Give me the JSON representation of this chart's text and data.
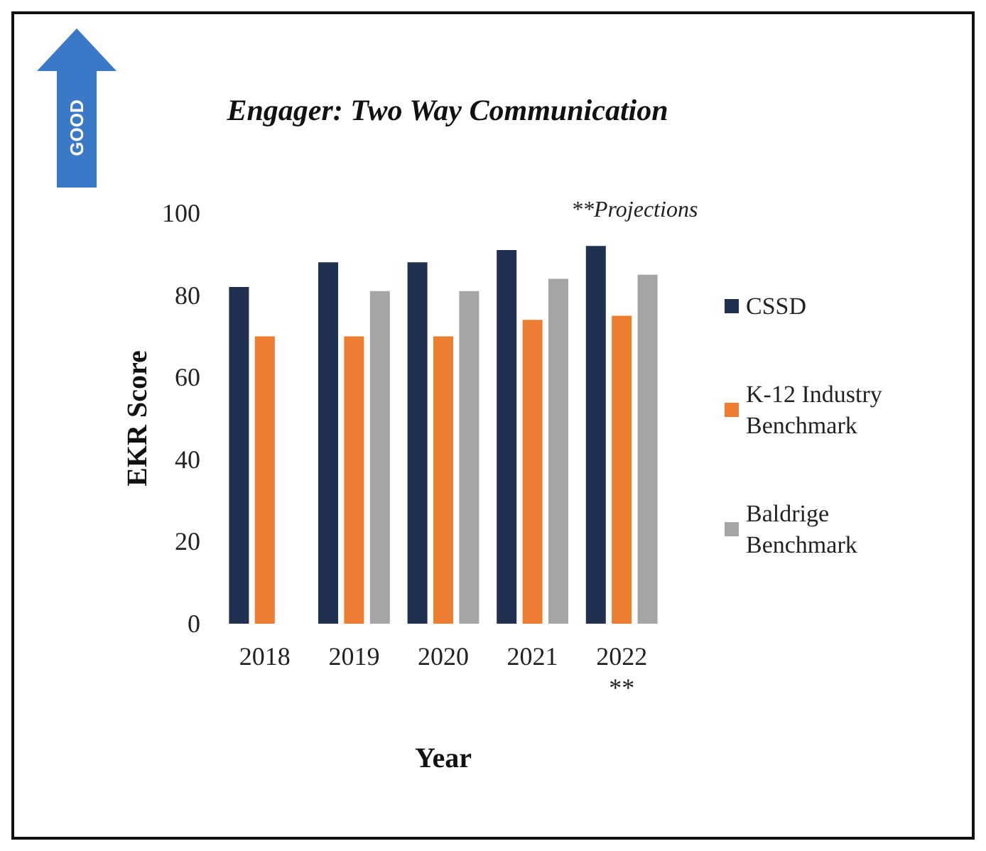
{
  "chart_data": {
    "type": "bar",
    "title": "Engager: Two Way Communication",
    "xlabel": "Year",
    "ylabel": "EKR Score",
    "categories": [
      "2018",
      "2019",
      "2020",
      "2021",
      "2022\n**"
    ],
    "series": [
      {
        "name": "CSSD",
        "color": "#1f3050",
        "values": [
          82,
          88,
          88,
          91,
          92
        ]
      },
      {
        "name": "K-12 Industry Benchmark",
        "color": "#ed7d31",
        "values": [
          70,
          70,
          70,
          74,
          75
        ]
      },
      {
        "name": "Baldrige Benchmark",
        "color": "#a5a5a5",
        "values": [
          null,
          81,
          81,
          84,
          85
        ]
      }
    ],
    "ylim": [
      0,
      100
    ],
    "yticks": [
      0,
      20,
      40,
      60,
      80,
      100
    ],
    "grid": false,
    "legend": "right",
    "annotations": [
      "**Projections",
      "GOOD"
    ]
  }
}
